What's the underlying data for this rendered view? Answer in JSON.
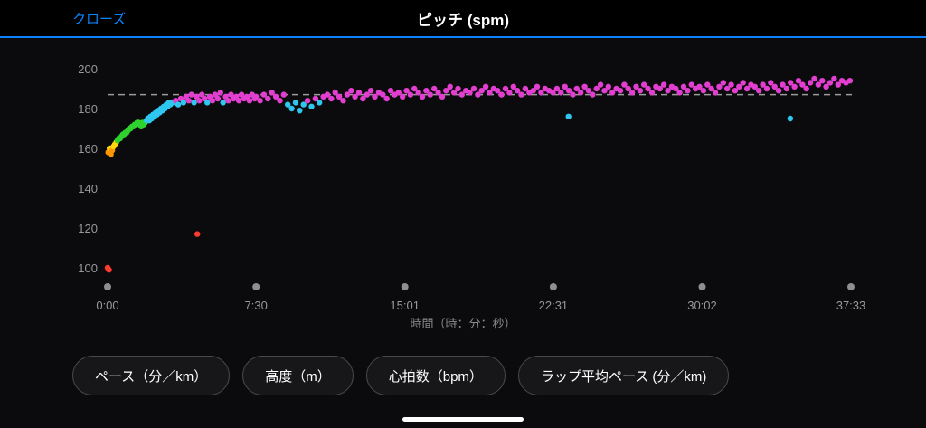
{
  "header": {
    "close_label": "クローズ",
    "title": "ピッチ (spm)"
  },
  "buttons": [
    {
      "label": "ペース（分／km）"
    },
    {
      "label": "高度（m）"
    },
    {
      "label": "心拍数（bpm）"
    },
    {
      "label": "ラップ平均ペース (分／km)"
    }
  ],
  "chart_data": {
    "type": "scatter",
    "title": "ピッチ (spm)",
    "xlabel": "時間（時：分：秒）",
    "ylabel": "",
    "y_ticks": [
      200,
      180,
      160,
      140,
      120,
      100
    ],
    "ylim": [
      95,
      205
    ],
    "x_ticks": [
      {
        "t": 0,
        "label": "0:00"
      },
      {
        "t": 450,
        "label": "7:30"
      },
      {
        "t": 901,
        "label": "15:01"
      },
      {
        "t": 1351,
        "label": "22:31"
      },
      {
        "t": 1802,
        "label": "30:02"
      },
      {
        "t": 2253,
        "label": "37:33"
      }
    ],
    "average_line": 187,
    "grid": false,
    "legend": false,
    "zones": [
      {
        "max": 152,
        "color": "#ff3b30"
      },
      {
        "max": 159,
        "color": "#ff9500"
      },
      {
        "max": 163,
        "color": "#ffd60a"
      },
      {
        "max": 173,
        "color": "#2fd12f"
      },
      {
        "max": 183,
        "color": "#2ec7f0"
      },
      {
        "max": 300,
        "color": "#e23fd0"
      }
    ],
    "points": [
      [
        0,
        100
      ],
      [
        4,
        99
      ],
      [
        2,
        158
      ],
      [
        6,
        160
      ],
      [
        10,
        157
      ],
      [
        14,
        159
      ],
      [
        18,
        161
      ],
      [
        22,
        162
      ],
      [
        26,
        163
      ],
      [
        30,
        164
      ],
      [
        34,
        165
      ],
      [
        38,
        165
      ],
      [
        42,
        166
      ],
      [
        46,
        167
      ],
      [
        50,
        167
      ],
      [
        54,
        168
      ],
      [
        58,
        168
      ],
      [
        62,
        169
      ],
      [
        66,
        170
      ],
      [
        70,
        170
      ],
      [
        74,
        171
      ],
      [
        78,
        171
      ],
      [
        82,
        172
      ],
      [
        86,
        172
      ],
      [
        90,
        173
      ],
      [
        94,
        173
      ],
      [
        98,
        172
      ],
      [
        102,
        171
      ],
      [
        106,
        173
      ],
      [
        110,
        172
      ],
      [
        114,
        173
      ],
      [
        118,
        174
      ],
      [
        122,
        175
      ],
      [
        126,
        174
      ],
      [
        130,
        176
      ],
      [
        134,
        175
      ],
      [
        138,
        177
      ],
      [
        142,
        176
      ],
      [
        146,
        178
      ],
      [
        150,
        177
      ],
      [
        154,
        179
      ],
      [
        158,
        178
      ],
      [
        162,
        180
      ],
      [
        166,
        179
      ],
      [
        170,
        181
      ],
      [
        174,
        180
      ],
      [
        178,
        182
      ],
      [
        182,
        181
      ],
      [
        186,
        183
      ],
      [
        190,
        182
      ],
      [
        194,
        183
      ],
      [
        198,
        183
      ],
      [
        206,
        184
      ],
      [
        214,
        182
      ],
      [
        222,
        185
      ],
      [
        230,
        183
      ],
      [
        238,
        186
      ],
      [
        246,
        184
      ],
      [
        254,
        187
      ],
      [
        262,
        183
      ],
      [
        270,
        186
      ],
      [
        272,
        117
      ],
      [
        278,
        184
      ],
      [
        286,
        187
      ],
      [
        294,
        185
      ],
      [
        302,
        183
      ],
      [
        310,
        186
      ],
      [
        318,
        184
      ],
      [
        326,
        187
      ],
      [
        334,
        185
      ],
      [
        342,
        188
      ],
      [
        350,
        183
      ],
      [
        358,
        186
      ],
      [
        366,
        184
      ],
      [
        374,
        187
      ],
      [
        382,
        185
      ],
      [
        390,
        186
      ],
      [
        398,
        184
      ],
      [
        406,
        187
      ],
      [
        414,
        185
      ],
      [
        422,
        186
      ],
      [
        430,
        184
      ],
      [
        438,
        187
      ],
      [
        446,
        185
      ],
      [
        450,
        186
      ],
      [
        462,
        184
      ],
      [
        474,
        187
      ],
      [
        486,
        185
      ],
      [
        498,
        188
      ],
      [
        510,
        186
      ],
      [
        522,
        184
      ],
      [
        534,
        187
      ],
      [
        546,
        182
      ],
      [
        558,
        180
      ],
      [
        570,
        183
      ],
      [
        582,
        179
      ],
      [
        594,
        182
      ],
      [
        606,
        184
      ],
      [
        618,
        181
      ],
      [
        630,
        185
      ],
      [
        642,
        183
      ],
      [
        654,
        186
      ],
      [
        666,
        187
      ],
      [
        678,
        185
      ],
      [
        690,
        188
      ],
      [
        702,
        186
      ],
      [
        714,
        184
      ],
      [
        726,
        187
      ],
      [
        738,
        189
      ],
      [
        750,
        186
      ],
      [
        762,
        188
      ],
      [
        774,
        185
      ],
      [
        786,
        187
      ],
      [
        798,
        189
      ],
      [
        810,
        186
      ],
      [
        822,
        188
      ],
      [
        834,
        187
      ],
      [
        846,
        185
      ],
      [
        858,
        189
      ],
      [
        870,
        187
      ],
      [
        882,
        188
      ],
      [
        894,
        186
      ],
      [
        906,
        189
      ],
      [
        918,
        187
      ],
      [
        930,
        190
      ],
      [
        942,
        188
      ],
      [
        954,
        186
      ],
      [
        966,
        189
      ],
      [
        978,
        187
      ],
      [
        990,
        190
      ],
      [
        1002,
        188
      ],
      [
        1014,
        186
      ],
      [
        1026,
        189
      ],
      [
        1038,
        191
      ],
      [
        1050,
        188
      ],
      [
        1062,
        190
      ],
      [
        1074,
        187
      ],
      [
        1086,
        189
      ],
      [
        1098,
        188
      ],
      [
        1110,
        190
      ],
      [
        1122,
        187
      ],
      [
        1134,
        189
      ],
      [
        1146,
        191
      ],
      [
        1158,
        188
      ],
      [
        1170,
        190
      ],
      [
        1182,
        189
      ],
      [
        1194,
        187
      ],
      [
        1206,
        190
      ],
      [
        1218,
        188
      ],
      [
        1230,
        191
      ],
      [
        1242,
        189
      ],
      [
        1254,
        187
      ],
      [
        1266,
        190
      ],
      [
        1278,
        188
      ],
      [
        1290,
        189
      ],
      [
        1302,
        191
      ],
      [
        1314,
        188
      ],
      [
        1326,
        190
      ],
      [
        1338,
        189
      ],
      [
        1350,
        188
      ],
      [
        1362,
        190
      ],
      [
        1374,
        188
      ],
      [
        1386,
        191
      ],
      [
        1397,
        176
      ],
      [
        1398,
        189
      ],
      [
        1410,
        187
      ],
      [
        1422,
        190
      ],
      [
        1434,
        188
      ],
      [
        1446,
        191
      ],
      [
        1458,
        189
      ],
      [
        1470,
        187
      ],
      [
        1482,
        190
      ],
      [
        1494,
        192
      ],
      [
        1506,
        189
      ],
      [
        1518,
        191
      ],
      [
        1530,
        188
      ],
      [
        1542,
        190
      ],
      [
        1554,
        189
      ],
      [
        1566,
        192
      ],
      [
        1578,
        190
      ],
      [
        1590,
        188
      ],
      [
        1602,
        191
      ],
      [
        1614,
        189
      ],
      [
        1626,
        192
      ],
      [
        1638,
        190
      ],
      [
        1650,
        188
      ],
      [
        1662,
        191
      ],
      [
        1674,
        190
      ],
      [
        1686,
        192
      ],
      [
        1698,
        189
      ],
      [
        1710,
        191
      ],
      [
        1722,
        190
      ],
      [
        1734,
        188
      ],
      [
        1746,
        191
      ],
      [
        1758,
        189
      ],
      [
        1770,
        192
      ],
      [
        1782,
        190
      ],
      [
        1794,
        191
      ],
      [
        1806,
        189
      ],
      [
        1818,
        192
      ],
      [
        1830,
        190
      ],
      [
        1842,
        188
      ],
      [
        1854,
        191
      ],
      [
        1866,
        193
      ],
      [
        1878,
        190
      ],
      [
        1890,
        192
      ],
      [
        1902,
        189
      ],
      [
        1914,
        191
      ],
      [
        1926,
        193
      ],
      [
        1938,
        190
      ],
      [
        1950,
        192
      ],
      [
        1962,
        191
      ],
      [
        1974,
        189
      ],
      [
        1986,
        192
      ],
      [
        1998,
        190
      ],
      [
        2010,
        193
      ],
      [
        2022,
        191
      ],
      [
        2034,
        189
      ],
      [
        2046,
        192
      ],
      [
        2058,
        190
      ],
      [
        2069,
        175
      ],
      [
        2070,
        193
      ],
      [
        2082,
        191
      ],
      [
        2094,
        194
      ],
      [
        2106,
        192
      ],
      [
        2118,
        190
      ],
      [
        2130,
        193
      ],
      [
        2142,
        195
      ],
      [
        2154,
        192
      ],
      [
        2166,
        194
      ],
      [
        2178,
        191
      ],
      [
        2190,
        193
      ],
      [
        2202,
        195
      ],
      [
        2214,
        192
      ],
      [
        2226,
        194
      ],
      [
        2238,
        193
      ],
      [
        2250,
        194
      ]
    ]
  }
}
